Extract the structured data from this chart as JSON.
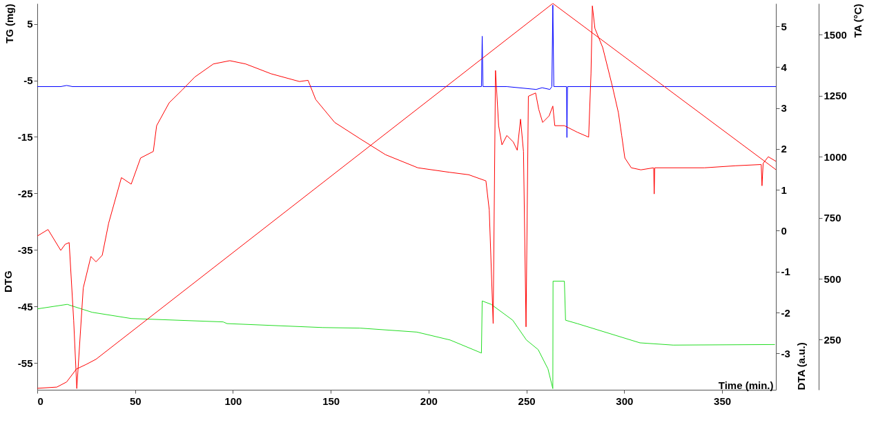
{
  "chart_data": {
    "type": "line",
    "xlabel": "Time (min.)",
    "ylabel": "TG (mg)",
    "y2label": "DTA (a.u.)",
    "y3label": "TA (°C)",
    "annotations": [
      "DTG"
    ],
    "xlim": [
      0,
      377.5
    ],
    "xticks": [
      0,
      50,
      100,
      150,
      200,
      250,
      300,
      350
    ],
    "ylim": [
      -59.7,
      8.6
    ],
    "yticks": [
      5,
      -5,
      -15,
      -25,
      -35,
      -45,
      -55
    ],
    "y2lim": [
      -3.89,
      5.56
    ],
    "y2ticks": [
      -3,
      -2,
      -1,
      0,
      1,
      2,
      3,
      4,
      5
    ],
    "y3lim": [
      45,
      1628
    ],
    "y3ticks": [
      250,
      500,
      750,
      1000,
      1250,
      1500
    ],
    "grid": false,
    "legend": false,
    "line_style": "solid",
    "marker": "none",
    "series": [
      {
        "color": "#22dd22",
        "axis": "y",
        "x": [
          0,
          15.3,
          28,
          48,
          95,
          97,
          146,
          165,
          194,
          211,
          227,
          227.4,
          232,
          243,
          250,
          256,
          261,
          263.5,
          263.6,
          269.4,
          270,
          276,
          308,
          325,
          377
        ],
        "values": [
          -45.4,
          -44.6,
          -46.0,
          -47.1,
          -47.7,
          -48.0,
          -48.7,
          -48.8,
          -49.5,
          -50.9,
          -53.2,
          -44.0,
          -44.6,
          -47.4,
          -50.9,
          -52.6,
          -56,
          -59.5,
          -40.5,
          -40.5,
          -47.4,
          -48,
          -51.4,
          -51.8,
          -51.7
        ]
      },
      {
        "color": "#0000ff",
        "axis": "y",
        "x": [
          0,
          12,
          15,
          18,
          227,
          227.4,
          227.8,
          240,
          255,
          258,
          262,
          263,
          263.5,
          264,
          270.5,
          270.7,
          271,
          377.5
        ],
        "values": [
          -6.1,
          -6.1,
          -5.9,
          -6.1,
          -6.1,
          2.8,
          -6.1,
          -6.1,
          -6.6,
          -6.3,
          -6.6,
          -6.1,
          8.3,
          -6.1,
          -6.1,
          -15.1,
          -6.1,
          -6.1
        ]
      },
      {
        "color": "#ff0000",
        "axis": "y2",
        "x": [
          0,
          5.5,
          12,
          14.3,
          16.3,
          18.6,
          20.2,
          23.5,
          27.4,
          30,
          33.2,
          36.5,
          43,
          48,
          52.8,
          59.3,
          61,
          67.4,
          74,
          80.5,
          90,
          98.4,
          106.5,
          119.5,
          134,
          138.4,
          142.3,
          152,
          165,
          178,
          194.5,
          210.7,
          220.5,
          229.3,
          231,
          233,
          234.2,
          235.8,
          237.5,
          240,
          243.3,
          245.3,
          247,
          248.5,
          249.8,
          251,
          254.7,
          256.3,
          258.3,
          261.6,
          263.5,
          264.5,
          269.4,
          276,
          281.8,
          283,
          283.7,
          285,
          289,
          294,
          297,
          298.7,
          300.3,
          303.6,
          308.5,
          315,
          315.3,
          315.6,
          341,
          357,
          370,
          370.4,
          371,
          373.6,
          377.5
        ],
        "values": [
          -0.13,
          0.03,
          -0.48,
          -0.33,
          -0.29,
          -2.19,
          -3.86,
          -1.4,
          -0.63,
          -0.76,
          -0.6,
          0.19,
          1.3,
          1.14,
          1.78,
          1.94,
          2.57,
          3.13,
          3.44,
          3.76,
          4.08,
          4.16,
          4.08,
          3.84,
          3.65,
          3.68,
          3.21,
          2.65,
          2.25,
          1.86,
          1.54,
          1.43,
          1.37,
          1.22,
          0.51,
          -2.27,
          3.92,
          2.57,
          2.1,
          2.33,
          2.17,
          1.97,
          2.73,
          1.94,
          -2.35,
          3.29,
          3.37,
          2.97,
          2.65,
          2.81,
          3.05,
          2.57,
          2.57,
          2.41,
          2.29,
          3.84,
          5.5,
          4.95,
          4.48,
          3.52,
          2.89,
          2.33,
          1.78,
          1.54,
          1.49,
          1.54,
          0.9,
          1.54,
          1.54,
          1.59,
          1.62,
          1.1,
          1.65,
          1.81,
          1.7
        ]
      },
      {
        "color": "#ff0000",
        "axis": "y3",
        "x": [
          0,
          10,
          15,
          20,
          25,
          30,
          263.5,
          377.5
        ],
        "values": [
          51,
          56,
          77,
          130,
          149,
          170,
          1628,
          947
        ]
      }
    ]
  }
}
